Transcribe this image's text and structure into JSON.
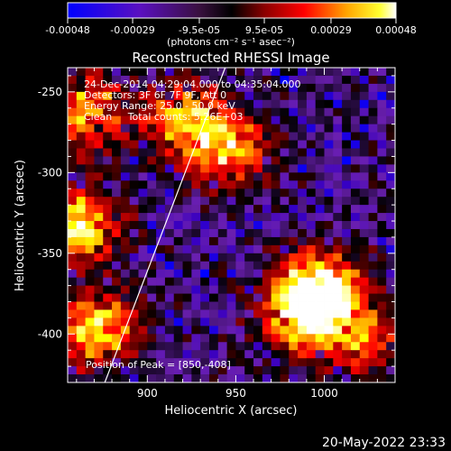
{
  "colorbar": {
    "ticks": [
      "-0.00048",
      "-0.00029",
      "-9.5e-05",
      "9.5e-05",
      "0.00029",
      "0.00048"
    ],
    "tick_values": [
      -0.00048,
      -0.00029,
      -9.5e-05,
      9.5e-05,
      0.00029,
      0.00048
    ],
    "range": [
      -0.00048,
      0.00048
    ],
    "unit_label": "(photons cm⁻² s⁻¹ asec⁻²)"
  },
  "chart_data": {
    "type": "heatmap",
    "title": "Reconstructed RHESSI Image",
    "xlabel": "Heliocentric X (arcsec)",
    "ylabel": "Heliocentric Y (arcsec)",
    "xlim": [
      855,
      1040
    ],
    "ylim": [
      -430,
      -235
    ],
    "x_ticks": [
      900,
      950,
      1000
    ],
    "y_ticks": [
      -250,
      -300,
      -350,
      -400
    ],
    "colormap_stops": [
      "#0000ff",
      "#3a00c0",
      "#6a1fb0",
      "#000000",
      "#8b0000",
      "#ff0000",
      "#ffa500",
      "#ffff00",
      "#ffffff"
    ],
    "limb": [
      [
        876,
        -430
      ],
      [
        944,
        -235
      ]
    ],
    "bright_regions": [
      {
        "x": 860,
        "y": -330,
        "level": 0.9
      },
      {
        "x": 865,
        "y": -260,
        "level": 0.7
      },
      {
        "x": 870,
        "y": -395,
        "level": 0.85
      },
      {
        "x": 920,
        "y": -265,
        "level": 0.75
      },
      {
        "x": 945,
        "y": -285,
        "level": 0.65
      },
      {
        "x": 985,
        "y": -385,
        "level": 0.85
      },
      {
        "x": 995,
        "y": -370,
        "level": 1.0
      },
      {
        "x": 1020,
        "y": -400,
        "level": 0.55
      }
    ],
    "annotations": [
      "24-Dec-2014 04:29:04.000 to 04:35:04.000",
      "Detectors: 3F 6F 7F 9F, Att 0",
      "Energy Range: 25.0 - 50.0 keV",
      "Clean     Total counts: 5.26E+03"
    ],
    "peak_label": "Position of Peak = [850,-408]"
  },
  "footer": {
    "date": "20-May-2022 23:33"
  }
}
